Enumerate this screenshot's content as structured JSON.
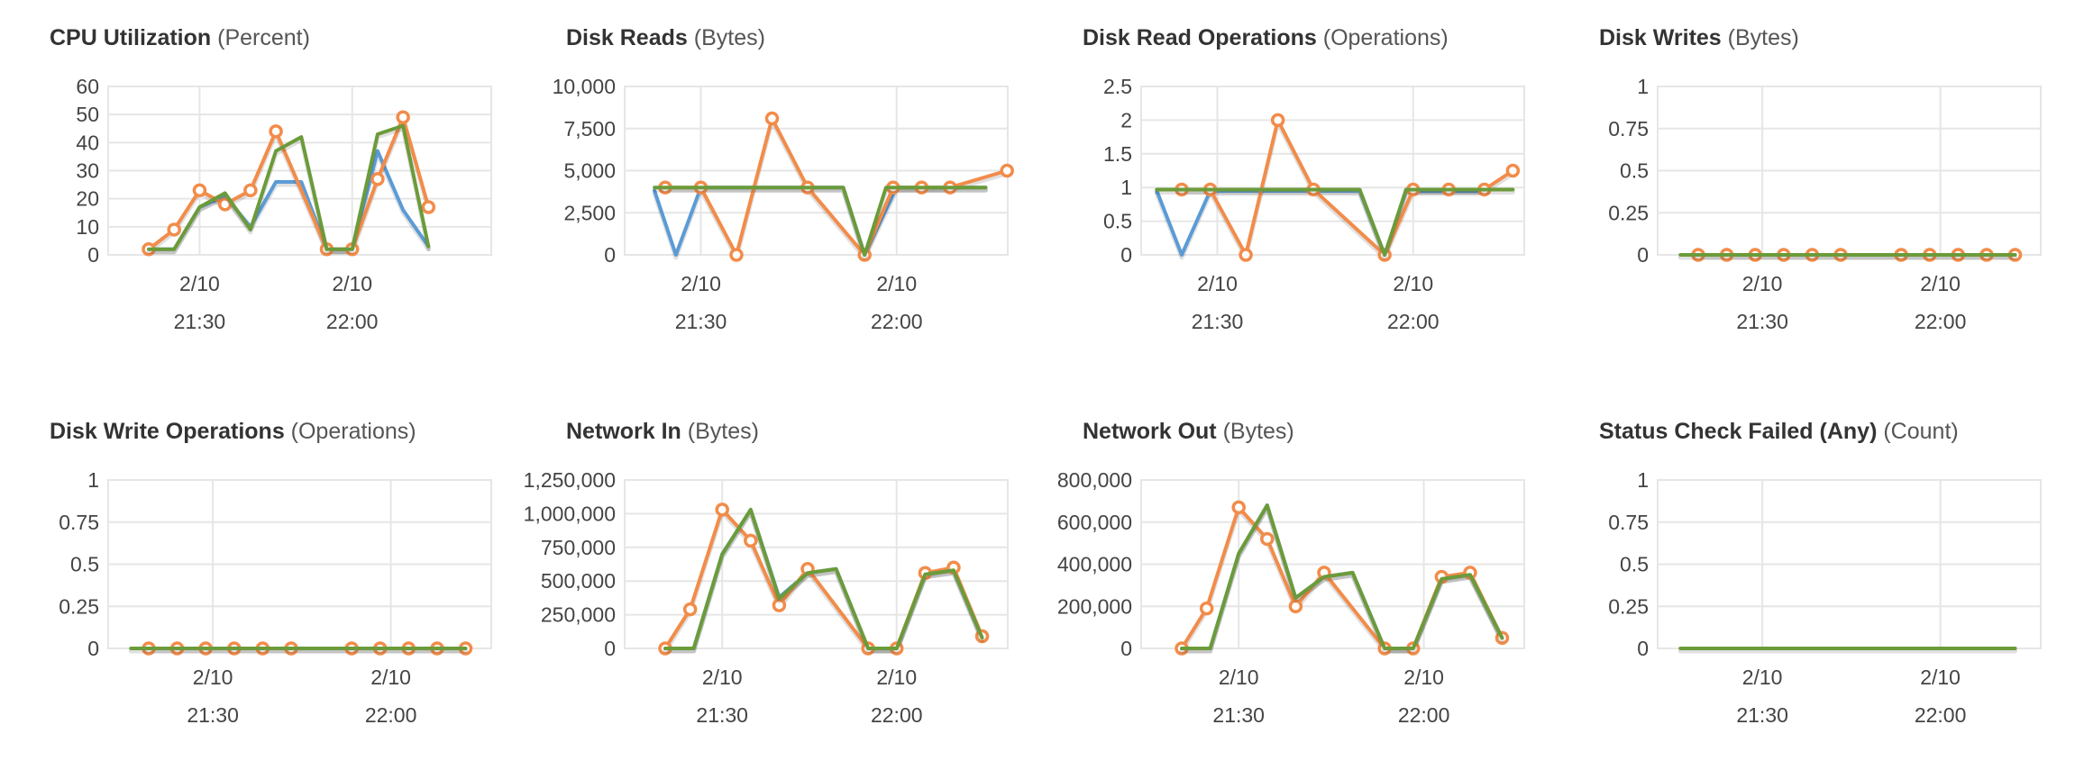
{
  "colors": {
    "blue": "#5b9bd5",
    "orange": "#f28c4a",
    "green": "#6b9b3a",
    "grid": "#e6e6e6"
  },
  "chart_data": [
    {
      "type": "line",
      "title": "CPU Utilization",
      "unit": "(Percent)",
      "ylim": [
        0,
        60
      ],
      "yticks": [
        "60",
        "50",
        "40",
        "30",
        "20",
        "10",
        "0"
      ],
      "ytick_values": [
        60,
        50,
        40,
        30,
        20,
        10,
        0
      ],
      "xlim": [
        0,
        14
      ],
      "xticks": [
        {
          "x": 2,
          "date": "2/10",
          "time": "21:30"
        },
        {
          "x": 8,
          "date": "2/10",
          "time": "22:00"
        }
      ],
      "grid": true,
      "series": [
        {
          "color": "blue",
          "markers": false,
          "x": [
            0,
            1,
            2,
            3,
            4,
            5,
            6,
            7,
            8,
            9,
            10,
            11,
            12
          ],
          "values": [
            2,
            2,
            17,
            21,
            10,
            26,
            26,
            2,
            2,
            37,
            16,
            3,
            null
          ]
        },
        {
          "color": "orange",
          "markers": true,
          "x": [
            0,
            1,
            2,
            3,
            4,
            5,
            7,
            8,
            9,
            10,
            11
          ],
          "values": [
            2,
            9,
            23,
            18,
            23,
            44,
            2,
            2,
            27,
            49,
            17
          ]
        },
        {
          "color": "green",
          "markers": false,
          "x": [
            0,
            1,
            2,
            3,
            4,
            5,
            6,
            7,
            8,
            9,
            10,
            11
          ],
          "values": [
            2,
            2,
            17,
            22,
            9,
            37,
            42,
            2,
            2,
            43,
            46,
            3
          ]
        }
      ]
    },
    {
      "type": "line",
      "title": "Disk Reads",
      "unit": "(Bytes)",
      "ylim": [
        0,
        10000
      ],
      "yticks": [
        "10,000",
        "7,500",
        "5,000",
        "2,500",
        "0"
      ],
      "ytick_values": [
        10000,
        7500,
        5000,
        2500,
        0
      ],
      "xlim": [
        0,
        10
      ],
      "xticks": [
        {
          "x": 1,
          "date": "2/10",
          "time": "21:30"
        },
        {
          "x": 6.5,
          "date": "2/10",
          "time": "22:00"
        }
      ],
      "grid": true,
      "series": [
        {
          "color": "blue",
          "markers": false,
          "x": [
            -0.3,
            0.3,
            1,
            2,
            3,
            4,
            5,
            5.6,
            6.5,
            7.5,
            9
          ],
          "values": [
            3800,
            0,
            4000,
            4000,
            4000,
            4000,
            4000,
            0,
            4000,
            4000,
            4000
          ]
        },
        {
          "color": "orange",
          "markers": true,
          "x": [
            0,
            1,
            2,
            3,
            4,
            5.6,
            6.4,
            7.2,
            8,
            9.6
          ],
          "values": [
            4000,
            4000,
            0,
            8100,
            4000,
            0,
            4000,
            4000,
            4000,
            5000
          ]
        },
        {
          "color": "green",
          "markers": false,
          "x": [
            -0.3,
            1,
            2,
            3,
            4,
            5,
            5.6,
            6.2,
            7,
            8,
            9
          ],
          "values": [
            4000,
            4000,
            4000,
            4000,
            4000,
            4000,
            0,
            4000,
            4000,
            4000,
            4000
          ]
        }
      ]
    },
    {
      "type": "line",
      "title": "Disk Read Operations",
      "unit": "(Operations)",
      "ylim": [
        0,
        2.5
      ],
      "yticks": [
        "2.5",
        "2",
        "1.5",
        "1",
        "0.5",
        "0"
      ],
      "ytick_values": [
        2.5,
        2,
        1.5,
        1,
        0.5,
        0
      ],
      "xlim": [
        0,
        10
      ],
      "xticks": [
        {
          "x": 1,
          "date": "2/10",
          "time": "21:30"
        },
        {
          "x": 6.5,
          "date": "2/10",
          "time": "22:00"
        }
      ],
      "grid": true,
      "series": [
        {
          "color": "blue",
          "markers": false,
          "x": [
            -0.7,
            0,
            0.8,
            1.8,
            3,
            4,
            5,
            5.7,
            6.3,
            7.3,
            8.5
          ],
          "values": [
            0.95,
            0,
            0.95,
            0.95,
            0.95,
            0.95,
            0.95,
            0,
            0.95,
            0.95,
            0.95
          ]
        },
        {
          "color": "orange",
          "markers": true,
          "x": [
            0,
            0.8,
            1.8,
            2.7,
            3.7,
            5.7,
            6.5,
            7.5,
            8.5,
            9.3
          ],
          "values": [
            0.97,
            0.97,
            0,
            2,
            0.97,
            0,
            0.97,
            0.97,
            0.97,
            1.25
          ]
        },
        {
          "color": "green",
          "markers": false,
          "x": [
            -0.7,
            1,
            2,
            3,
            4,
            5,
            5.7,
            6.3,
            7.5,
            8.5,
            9.3
          ],
          "values": [
            0.97,
            0.97,
            0.97,
            0.97,
            0.97,
            0.97,
            0,
            0.97,
            0.97,
            0.97,
            0.97
          ]
        }
      ]
    },
    {
      "type": "line",
      "title": "Disk Writes",
      "unit": "(Bytes)",
      "ylim": [
        0,
        1
      ],
      "yticks": [
        "1",
        "0.75",
        "0.5",
        "0.25",
        "0"
      ],
      "ytick_values": [
        1,
        0.75,
        0.5,
        0.25,
        0
      ],
      "xlim": [
        0,
        10
      ],
      "xticks": [
        {
          "x": 1.8,
          "date": "2/10",
          "time": "21:30"
        },
        {
          "x": 6.8,
          "date": "2/10",
          "time": "22:00"
        }
      ],
      "grid": true,
      "series": [
        {
          "color": "orange",
          "markers": true,
          "x": [
            0,
            0.8,
            1.6,
            2.4,
            3.2,
            4,
            5.7,
            6.5,
            7.3,
            8.1,
            8.9
          ],
          "values": [
            0,
            0,
            0,
            0,
            0,
            0,
            0,
            0,
            0,
            0,
            0
          ]
        },
        {
          "color": "green",
          "markers": false,
          "x": [
            -0.5,
            8.9
          ],
          "values": [
            0,
            0
          ]
        }
      ]
    },
    {
      "type": "line",
      "title": "Disk Write Operations",
      "unit": "(Operations)",
      "ylim": [
        0,
        1
      ],
      "yticks": [
        "1",
        "0.75",
        "0.5",
        "0.25",
        "0"
      ],
      "ytick_values": [
        1,
        0.75,
        0.5,
        0.25,
        0
      ],
      "xlim": [
        0,
        10
      ],
      "xticks": [
        {
          "x": 1.8,
          "date": "2/10",
          "time": "21:30"
        },
        {
          "x": 6.8,
          "date": "2/10",
          "time": "22:00"
        }
      ],
      "grid": true,
      "series": [
        {
          "color": "orange",
          "markers": true,
          "x": [
            0,
            0.8,
            1.6,
            2.4,
            3.2,
            4,
            5.7,
            6.5,
            7.3,
            8.1,
            8.9
          ],
          "values": [
            0,
            0,
            0,
            0,
            0,
            0,
            0,
            0,
            0,
            0,
            0
          ]
        },
        {
          "color": "green",
          "markers": false,
          "x": [
            -0.5,
            8.9
          ],
          "values": [
            0,
            0
          ]
        }
      ]
    },
    {
      "type": "line",
      "title": "Network In",
      "unit": "(Bytes)",
      "ylim": [
        0,
        1250000
      ],
      "yticks": [
        "1,250,000",
        "1,000,000",
        "750,000",
        "500,000",
        "250,000",
        "0"
      ],
      "ytick_values": [
        1250000,
        1000000,
        750000,
        500000,
        250000,
        0
      ],
      "xlim": [
        0,
        10
      ],
      "xticks": [
        {
          "x": 1.6,
          "date": "2/10",
          "time": "21:30"
        },
        {
          "x": 6.5,
          "date": "2/10",
          "time": "22:00"
        }
      ],
      "grid": true,
      "series": [
        {
          "color": "blue",
          "markers": false,
          "x": [
            0,
            0.8,
            1.6,
            2.4,
            3.2,
            4,
            4.8,
            5.7,
            6.5,
            7.3,
            8.1,
            8.9
          ],
          "values": [
            0,
            0,
            700000,
            1030000,
            380000,
            560000,
            590000,
            0,
            0,
            550000,
            580000,
            80000
          ]
        },
        {
          "color": "orange",
          "markers": true,
          "x": [
            0,
            0.7,
            1.6,
            2.4,
            3.2,
            4,
            5.7,
            6.5,
            7.3,
            8.1,
            8.9
          ],
          "values": [
            0,
            290000,
            1030000,
            800000,
            320000,
            590000,
            0,
            0,
            560000,
            600000,
            90000
          ]
        },
        {
          "color": "green",
          "markers": false,
          "x": [
            0,
            0.8,
            1.6,
            2.4,
            3.2,
            4,
            4.8,
            5.7,
            6.5,
            7.3,
            8.1,
            8.9
          ],
          "values": [
            0,
            0,
            700000,
            1030000,
            370000,
            560000,
            590000,
            0,
            0,
            550000,
            580000,
            80000
          ]
        }
      ]
    },
    {
      "type": "line",
      "title": "Network Out",
      "unit": "(Bytes)",
      "ylim": [
        0,
        800000
      ],
      "yticks": [
        "800,000",
        "600,000",
        "400,000",
        "200,000",
        "0"
      ],
      "ytick_values": [
        800000,
        600000,
        400000,
        200000,
        0
      ],
      "xlim": [
        0,
        10
      ],
      "xticks": [
        {
          "x": 1.6,
          "date": "2/10",
          "time": "21:30"
        },
        {
          "x": 6.8,
          "date": "2/10",
          "time": "22:00"
        }
      ],
      "grid": true,
      "series": [
        {
          "color": "blue",
          "markers": false,
          "x": [
            0,
            0.8,
            1.6,
            2.4,
            3.2,
            4,
            4.8,
            5.7,
            6.5,
            7.3,
            8.1,
            9
          ],
          "values": [
            0,
            0,
            450000,
            680000,
            240000,
            340000,
            360000,
            0,
            0,
            330000,
            350000,
            50000
          ]
        },
        {
          "color": "orange",
          "markers": true,
          "x": [
            0,
            0.7,
            1.6,
            2.4,
            3.2,
            4,
            5.7,
            6.5,
            7.3,
            8.1,
            9
          ],
          "values": [
            0,
            190000,
            670000,
            520000,
            200000,
            360000,
            0,
            0,
            340000,
            360000,
            50000
          ]
        },
        {
          "color": "green",
          "markers": false,
          "x": [
            0,
            0.8,
            1.6,
            2.4,
            3.2,
            4,
            4.8,
            5.7,
            6.5,
            7.3,
            8.1,
            9
          ],
          "values": [
            0,
            0,
            450000,
            680000,
            240000,
            340000,
            360000,
            0,
            0,
            330000,
            350000,
            50000
          ]
        }
      ]
    },
    {
      "type": "line",
      "title": "Status Check Failed (Any)",
      "unit": "(Count)",
      "ylim": [
        0,
        1
      ],
      "yticks": [
        "1",
        "0.75",
        "0.5",
        "0.25",
        "0"
      ],
      "ytick_values": [
        1,
        0.75,
        0.5,
        0.25,
        0
      ],
      "xlim": [
        0,
        10
      ],
      "xticks": [
        {
          "x": 1.8,
          "date": "2/10",
          "time": "21:30"
        },
        {
          "x": 6.8,
          "date": "2/10",
          "time": "22:00"
        }
      ],
      "grid": true,
      "series": [
        {
          "color": "green",
          "markers": false,
          "x": [
            -0.5,
            8.9
          ],
          "values": [
            0,
            0
          ]
        }
      ]
    }
  ]
}
